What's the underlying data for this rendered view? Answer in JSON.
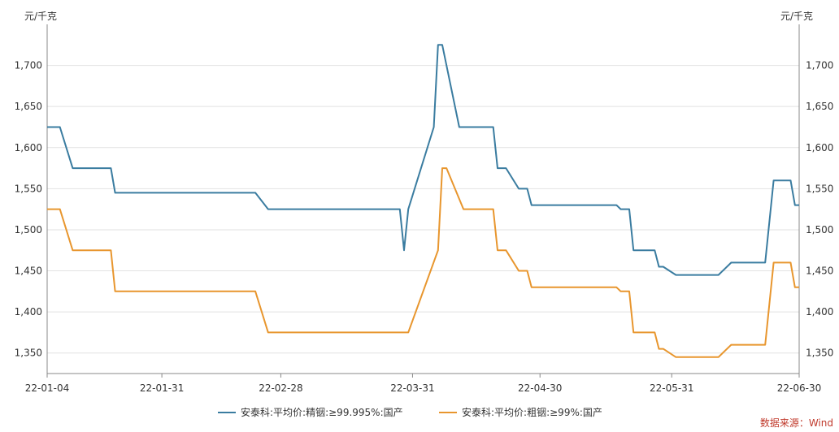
{
  "chart_data": {
    "type": "line",
    "left_unit": "元/千克",
    "right_unit": "元/千克",
    "ylim": [
      1325,
      1750
    ],
    "y_ticks": [
      1350,
      1400,
      1450,
      1500,
      1550,
      1600,
      1650,
      1700
    ],
    "y_tick_labels": [
      "1,350",
      "1,400",
      "1,450",
      "1,500",
      "1,550",
      "1,600",
      "1,650",
      "1,700"
    ],
    "x_start": "2022-01-04",
    "x_end": "2022-06-30",
    "x_ticks": [
      "2022-01-04",
      "2022-01-31",
      "2022-02-28",
      "2022-03-31",
      "2022-04-30",
      "2022-05-31",
      "2022-06-30"
    ],
    "x_tick_labels": [
      "22-01-04",
      "22-01-31",
      "22-02-28",
      "22-03-31",
      "22-04-30",
      "22-05-31",
      "22-06-30"
    ],
    "grid": true,
    "legend_position": "bottom",
    "source": "数据来源：Wind",
    "series": [
      {
        "name": "安泰科:平均价:精铟:≥99.995%:国产",
        "color": "#3a7ca0",
        "points": [
          [
            "2022-01-04",
            1625
          ],
          [
            "2022-01-07",
            1625
          ],
          [
            "2022-01-10",
            1575
          ],
          [
            "2022-01-19",
            1575
          ],
          [
            "2022-01-20",
            1545
          ],
          [
            "2022-02-22",
            1545
          ],
          [
            "2022-02-25",
            1525
          ],
          [
            "2022-03-28",
            1525
          ],
          [
            "2022-03-29",
            1475
          ],
          [
            "2022-03-30",
            1525
          ],
          [
            "2022-04-05",
            1625
          ],
          [
            "2022-04-06",
            1725
          ],
          [
            "2022-04-07",
            1725
          ],
          [
            "2022-04-11",
            1625
          ],
          [
            "2022-04-19",
            1625
          ],
          [
            "2022-04-20",
            1575
          ],
          [
            "2022-04-22",
            1575
          ],
          [
            "2022-04-25",
            1550
          ],
          [
            "2022-04-27",
            1550
          ],
          [
            "2022-04-28",
            1530
          ],
          [
            "2022-05-18",
            1530
          ],
          [
            "2022-05-19",
            1525
          ],
          [
            "2022-05-21",
            1525
          ],
          [
            "2022-05-22",
            1475
          ],
          [
            "2022-05-27",
            1475
          ],
          [
            "2022-05-28",
            1455
          ],
          [
            "2022-05-29",
            1455
          ],
          [
            "2022-06-01",
            1445
          ],
          [
            "2022-06-11",
            1445
          ],
          [
            "2022-06-14",
            1460
          ],
          [
            "2022-06-22",
            1460
          ],
          [
            "2022-06-24",
            1560
          ],
          [
            "2022-06-28",
            1560
          ],
          [
            "2022-06-29",
            1530
          ],
          [
            "2022-06-30",
            1530
          ]
        ]
      },
      {
        "name": "安泰科:平均价:粗铟:≥99%:国产",
        "color": "#e8962e",
        "points": [
          [
            "2022-01-04",
            1525
          ],
          [
            "2022-01-07",
            1525
          ],
          [
            "2022-01-10",
            1475
          ],
          [
            "2022-01-19",
            1475
          ],
          [
            "2022-01-20",
            1425
          ],
          [
            "2022-02-22",
            1425
          ],
          [
            "2022-02-25",
            1375
          ],
          [
            "2022-03-30",
            1375
          ],
          [
            "2022-04-06",
            1475
          ],
          [
            "2022-04-07",
            1575
          ],
          [
            "2022-04-08",
            1575
          ],
          [
            "2022-04-12",
            1525
          ],
          [
            "2022-04-19",
            1525
          ],
          [
            "2022-04-20",
            1475
          ],
          [
            "2022-04-22",
            1475
          ],
          [
            "2022-04-25",
            1450
          ],
          [
            "2022-04-27",
            1450
          ],
          [
            "2022-04-28",
            1430
          ],
          [
            "2022-05-18",
            1430
          ],
          [
            "2022-05-19",
            1425
          ],
          [
            "2022-05-21",
            1425
          ],
          [
            "2022-05-22",
            1375
          ],
          [
            "2022-05-27",
            1375
          ],
          [
            "2022-05-28",
            1355
          ],
          [
            "2022-05-29",
            1355
          ],
          [
            "2022-06-01",
            1345
          ],
          [
            "2022-06-11",
            1345
          ],
          [
            "2022-06-14",
            1360
          ],
          [
            "2022-06-22",
            1360
          ],
          [
            "2022-06-24",
            1460
          ],
          [
            "2022-06-28",
            1460
          ],
          [
            "2022-06-29",
            1430
          ],
          [
            "2022-06-30",
            1430
          ]
        ]
      }
    ]
  }
}
